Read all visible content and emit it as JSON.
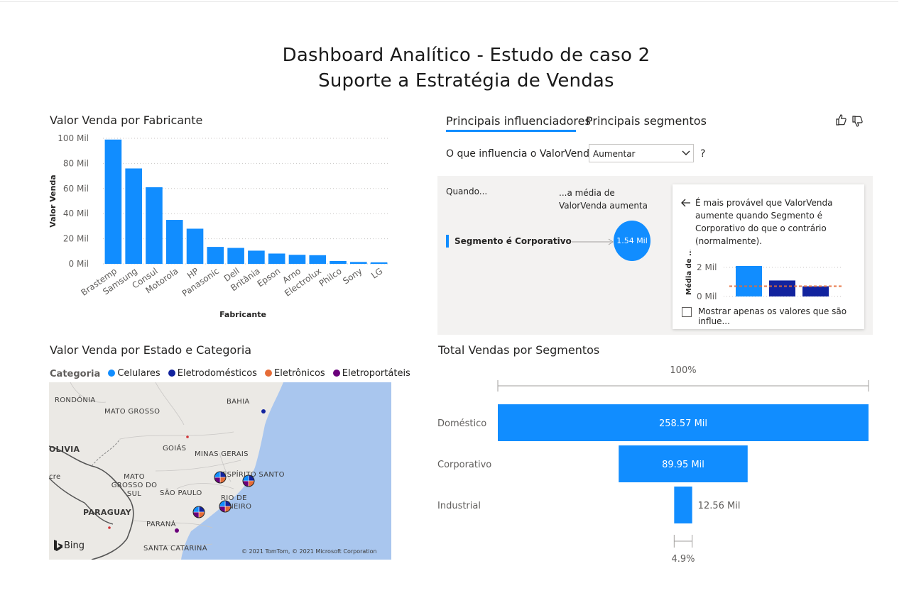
{
  "header": {
    "title_line1": "Dashboard Analítico - Estudo de caso 2",
    "title_line2": "Suporte a Estratégia de Vendas"
  },
  "bar_visual": {
    "title": "Valor Venda por Fabricante",
    "chart_data": {
      "type": "bar",
      "categories": [
        "Brastemp",
        "Samsung",
        "Consul",
        "Motorola",
        "HP",
        "Panasonic",
        "Dell",
        "Britânia",
        "Epson",
        "Arno",
        "Electrolux",
        "Philco",
        "Sony",
        "LG"
      ],
      "values": [
        99,
        76,
        61,
        35,
        28,
        13.5,
        12.7,
        10.5,
        8.2,
        7.2,
        6.9,
        2.3,
        1.5,
        1.2
      ],
      "xlabel": "Fabricante",
      "ylabel": "Valor Venda",
      "ylim": [
        0,
        100
      ],
      "yticks": [
        "0 Mil",
        "20 Mil",
        "40 Mil",
        "60 Mil",
        "80 Mil",
        "100 Mil"
      ],
      "ytick_values": [
        0,
        20,
        40,
        60,
        80,
        100
      ],
      "color": "#118dff",
      "grid": true
    }
  },
  "influencers": {
    "tab_active": "Principais influenciadores",
    "tab_other": "Principais segmentos",
    "question": "O que influencia o ValorVenda a",
    "dropdown_value": "Aumentar",
    "help": "?",
    "col_when": "Quando...",
    "col_avg": "...a média de ValorVenda aumenta",
    "factor": "Segmento é Corporativo",
    "bubble_value": "1.54 Mil",
    "detail_text": "É mais provável que ValorVenda aumente quando Segmento é Corporativo do que o contrário (normalmente).",
    "mini_ylabel": "Média de ...",
    "mini_yticks": [
      "2 Mil",
      "0 Mil"
    ],
    "mini_values": [
      2.1,
      1.1,
      0.7
    ],
    "mini_average": 0.7,
    "checkbox_label": "Mostrar apenas os valores que são influe..."
  },
  "map_visual": {
    "title": "Valor Venda por Estado e Categoria",
    "legend_title": "Categoria",
    "legend": [
      {
        "label": "Celulares",
        "color": "#118dff"
      },
      {
        "label": "Eletrodomésticos",
        "color": "#12239e"
      },
      {
        "label": "Eletrônicos",
        "color": "#e66c37"
      },
      {
        "label": "Eletroportáteis",
        "color": "#6b007b"
      }
    ],
    "labels": [
      "RONDÔNIA",
      "MATO GROSSO",
      "BAHIA",
      "OLIVIA",
      "GOIÁS",
      "MINAS GERAIS",
      "ESPÍRITO SANTO",
      "cre",
      "MATO GROSSO DO SUL",
      "SÃO PAULO",
      "RIO DE JANEIRO",
      "PARAGUAY",
      "PARANÁ",
      "SANTA CATARINA"
    ],
    "bing": "Bing",
    "copyright": "© 2021 TomTom, © 2021 Microsoft Corporation"
  },
  "funnel_visual": {
    "title": "Total Vendas por Segmentos",
    "top_pct": "100%",
    "bottom_pct": "4.9%",
    "chart_data": {
      "type": "bar",
      "categories": [
        "Doméstico",
        "Corporativo",
        "Industrial"
      ],
      "values": [
        258.57,
        89.95,
        12.56
      ],
      "value_labels": [
        "258.57 Mil",
        "89.95 Mil",
        "12.56 Mil"
      ],
      "color": "#118dff"
    }
  }
}
